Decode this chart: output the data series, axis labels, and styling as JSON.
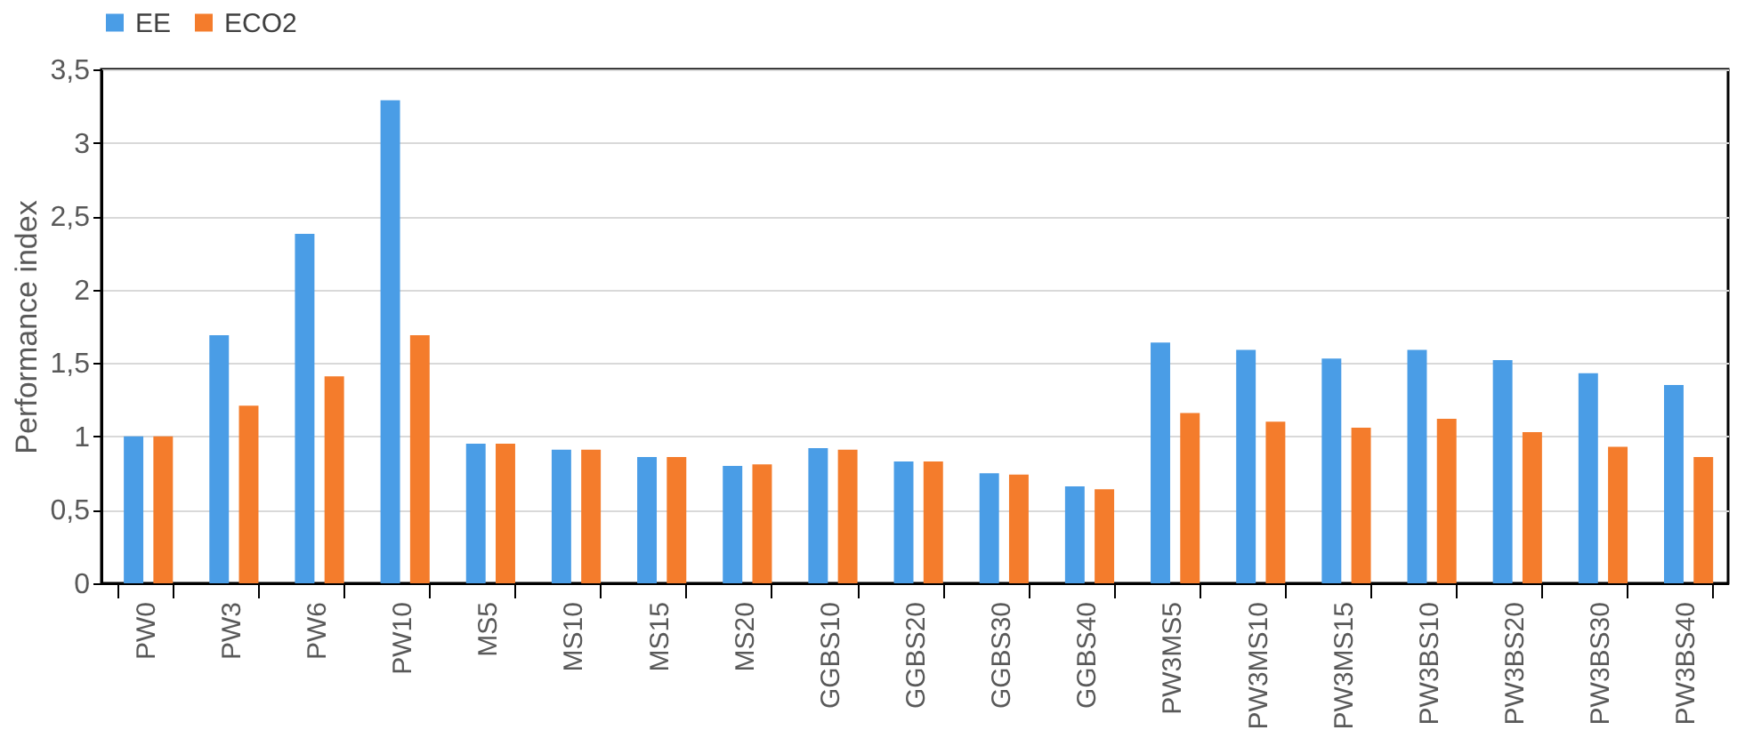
{
  "chart_data": {
    "type": "bar",
    "ylabel": "Performance index",
    "categories": [
      "PW0",
      "PW3",
      "PW6",
      "PW10",
      "MS5",
      "MS10",
      "MS15",
      "MS20",
      "GGBS10",
      "GGBS20",
      "GGBS30",
      "GGBS40",
      "PW3MS5",
      "PW3MS10",
      "PW3MS15",
      "PW3BS10",
      "PW3BS20",
      "PW3BS30",
      "PW3BS40"
    ],
    "series": [
      {
        "name": "EE",
        "color": "#4a9de6",
        "values": [
          1.0,
          1.69,
          2.38,
          3.29,
          0.95,
          0.91,
          0.86,
          0.8,
          0.92,
          0.83,
          0.75,
          0.66,
          1.64,
          1.59,
          1.53,
          1.59,
          1.52,
          1.43,
          1.35
        ]
      },
      {
        "name": "ECO2",
        "color": "#f47c2c",
        "values": [
          1.0,
          1.21,
          1.41,
          1.69,
          0.95,
          0.91,
          0.86,
          0.81,
          0.91,
          0.83,
          0.74,
          0.64,
          1.16,
          1.1,
          1.06,
          1.12,
          1.03,
          0.93,
          0.86
        ]
      }
    ],
    "ylim": [
      0,
      3.5
    ],
    "yticks": [
      0,
      {
        "value": 0.5,
        "label": "0,5"
      },
      1,
      {
        "value": 1.5,
        "label": "1,5"
      },
      2,
      {
        "value": 2.5,
        "label": "2,5"
      },
      3,
      {
        "value": 3.5,
        "label": "3,5"
      }
    ],
    "grid": "y",
    "legend": "top"
  }
}
